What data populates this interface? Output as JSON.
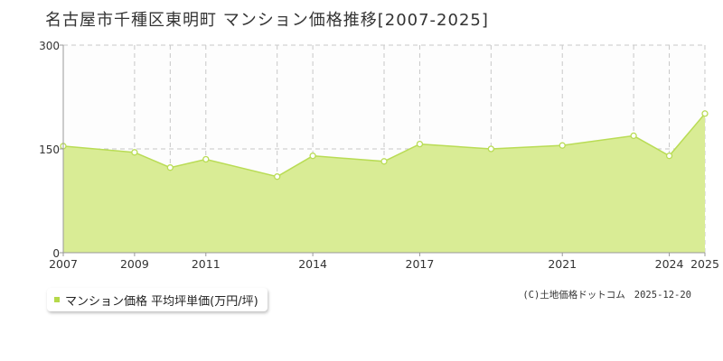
{
  "title": "名古屋市千種区東明町 マンション価格推移[2007-2025]",
  "chart_data": {
    "type": "area",
    "x": [
      2007,
      2009,
      2010,
      2011,
      2013,
      2014,
      2016,
      2017,
      2019,
      2021,
      2023,
      2024,
      2025
    ],
    "series": [
      {
        "name": "マンション価格 平均坪単価(万円/坪)",
        "values": [
          154,
          145,
          123,
          135,
          110,
          140,
          132,
          157,
          150,
          155,
          169,
          140,
          201
        ]
      }
    ],
    "xticks": [
      "2007",
      "2009",
      "2011",
      "2014",
      "2017",
      "2021",
      "2024",
      "2025"
    ],
    "yticks": [
      "0",
      "150",
      "300"
    ],
    "ylim": [
      0,
      300
    ],
    "grid": true,
    "legend_position": "bottom-left",
    "colors": {
      "fill": "#d9ec95",
      "line": "#b9dc55",
      "marker_fill": "#ffffff",
      "grid": "#c8c8c8"
    }
  },
  "legend": {
    "label": "マンション価格 平均坪単価(万円/坪)"
  },
  "credit": {
    "source": "(C)土地価格ドットコム",
    "date": "2025-12-20"
  }
}
